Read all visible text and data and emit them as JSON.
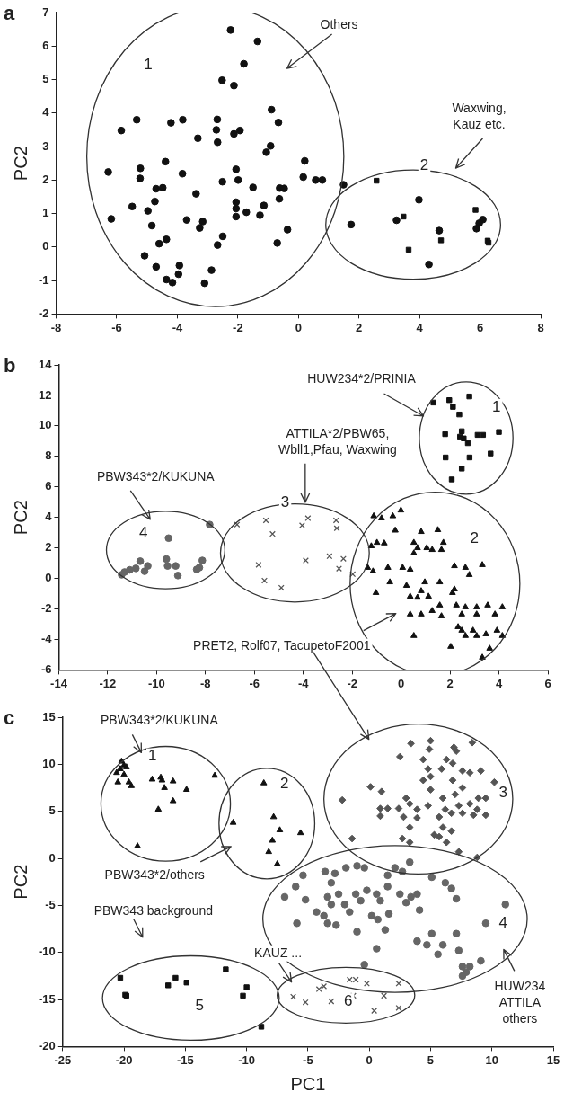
{
  "chart_data": [
    {
      "type": "scatter",
      "title": "a",
      "ylabel": "PC2",
      "xlim": [
        -8,
        8
      ],
      "ylim": [
        -2,
        7
      ],
      "xticks": [
        -8,
        -6,
        -4,
        -2,
        0,
        2,
        4,
        6,
        8
      ],
      "yticks": [
        -2,
        -1,
        0,
        1,
        2,
        3,
        4,
        5,
        6,
        7
      ],
      "series": [
        {
          "color": "#111111",
          "marker": "circle",
          "x": [
            -2.24,
            -1.35,
            -1.8,
            -2.52,
            -2.13,
            -0.89,
            -0.66,
            -5.34,
            -5.85,
            -4.21,
            -3.82,
            -2.68,
            -2.71,
            -3.32,
            -2.67,
            -2.13,
            -1.93,
            -0.92,
            -1.06,
            -6.28,
            -5.22,
            -5.23,
            -4.39,
            -3.83,
            -2.06,
            -1.99,
            -2.51,
            -4.7,
            -4.48,
            -3.38,
            -1.5,
            -0.62,
            -0.47,
            -0.63,
            0.21,
            0.16,
            0.57,
            0.79,
            -5.49,
            -4.74,
            -4.97,
            -2.06,
            -2.06,
            -2.06,
            -1.72,
            -1.14,
            -1.27,
            -6.18,
            -4.84,
            -3.69,
            -3.16,
            -3.26,
            -0.36,
            -0.7,
            -4.6,
            -4.36,
            -2.5,
            -2.67,
            -5.08,
            -4.7,
            -3.93,
            -3.96,
            -2.87,
            -4.36,
            -4.16,
            -3.1
          ],
          "values": [
            6.48,
            6.14,
            5.47,
            4.98,
            4.82,
            4.1,
            3.72,
            3.8,
            3.48,
            3.71,
            3.8,
            3.81,
            3.5,
            3.25,
            3.13,
            3.38,
            3.48,
            3.02,
            2.83,
            2.24,
            2.35,
            2.05,
            2.55,
            2.19,
            2.32,
            2.0,
            1.95,
            1.74,
            1.77,
            1.59,
            1.78,
            1.76,
            1.75,
            1.44,
            2.57,
            2.09,
            2.0,
            2.0,
            1.21,
            1.36,
            1.08,
            1.34,
            1.15,
            0.91,
            1.04,
            1.24,
            0.95,
            0.84,
            0.64,
            0.81,
            0.76,
            0.57,
            0.52,
            0.12,
            0.1,
            0.23,
            0.32,
            0.06,
            -0.26,
            -0.59,
            -0.55,
            -0.81,
            -0.69,
            -0.97,
            -1.06,
            -1.08
          ]
        },
        {
          "color": "#111111",
          "marker": "circle",
          "x": [
            1.49,
            1.74,
            3.24,
            3.98,
            4.31,
            4.65,
            6.09,
            5.97,
            5.88
          ],
          "values": [
            1.86,
            0.67,
            0.8,
            1.41,
            -0.52,
            0.49,
            0.82,
            0.71,
            0.55
          ]
        },
        {
          "color": "#111111",
          "marker": "square",
          "x": [
            2.58,
            3.47,
            3.64,
            4.71,
            5.85,
            6.25,
            6.28
          ],
          "values": [
            1.98,
            0.91,
            -0.08,
            0.2,
            1.11,
            0.19,
            0.13
          ]
        }
      ],
      "annotations": [
        "Others",
        "Waxwing,\nKauz etc.",
        "1",
        "2"
      ]
    },
    {
      "type": "scatter",
      "title": "b",
      "ylabel": "PC2",
      "xlim": [
        -14,
        6
      ],
      "ylim": [
        -6,
        14
      ],
      "xticks": [
        -14,
        -12,
        -10,
        -8,
        -6,
        -4,
        -2,
        0,
        2,
        4,
        6
      ],
      "yticks": [
        -6,
        -4,
        -2,
        0,
        2,
        4,
        6,
        8,
        10,
        12,
        14
      ],
      "series": [
        {
          "color": "#111111",
          "marker": "triangle",
          "x": [
            -1.12,
            -0.8,
            -0.34,
            -0.01,
            -0.24,
            -1.22,
            -0.99,
            -0.69,
            -1.37,
            -1.15,
            -0.54,
            0.06,
            0.37,
            0.52,
            0.82,
            0.52,
            0.67,
            1.05,
            1.27,
            1.5,
            1.73,
            1.65,
            2.18,
            2.63,
            2.79,
            3.32,
            -0.46,
            0.22,
            0.97,
            1.58,
            0.82,
            2.18,
            -1.03,
            0.37,
            0.67,
            1.12,
            2.1,
            1.58,
            2.26,
            2.63,
            3.09,
            3.54,
            4.14,
            0.37,
            0.82,
            1.27,
            1.65,
            2.48,
            3.09,
            3.84,
            2.33,
            2.48,
            2.94,
            3.09,
            3.47,
            3.92,
            4.14,
            0.52,
            2.03,
            3.62,
            3.32,
            2.63
          ],
          "values": [
            4.09,
            3.95,
            4.09,
            4.47,
            3.15,
            2.12,
            2.35,
            2.31,
            0.71,
            0.47,
            0.71,
            0.71,
            0.59,
            2.35,
            3.06,
            1.65,
            2.0,
            2.0,
            1.88,
            3.18,
            2.35,
            1.88,
            0.82,
            0.71,
            0.24,
            0.89,
            -0.24,
            -0.47,
            -0.24,
            -0.24,
            -0.82,
            -0.71,
            -0.94,
            -1.18,
            -1.25,
            -1.18,
            -0.94,
            -1.76,
            -1.76,
            -1.88,
            -1.88,
            -1.76,
            -1.88,
            -2.35,
            -2.35,
            -2.12,
            -2.47,
            -2.35,
            -2.35,
            -2.35,
            -3.18,
            -3.41,
            -3.41,
            -3.76,
            -3.65,
            -3.41,
            -3.76,
            -3.76,
            -4.47,
            -4.59,
            -5.18,
            -3.76
          ]
        },
        {
          "color": "#111111",
          "marker": "square",
          "x": [
            1.32,
            1.97,
            2.12,
            2.38,
            2.79,
            1.8,
            2.48,
            2.41,
            2.56,
            2.73,
            3.13,
            3.35,
            4.0,
            3.66,
            1.82,
            2.8,
            2.48,
            2.07
          ],
          "values": [
            11.53,
            11.69,
            11.25,
            10.75,
            11.93,
            9.46,
            9.65,
            9.29,
            9.18,
            8.87,
            9.41,
            9.41,
            9.6,
            8.19,
            7.93,
            7.93,
            7.2,
            6.49
          ]
        },
        {
          "color": "#666666",
          "marker": "circle",
          "x": [
            -11.43,
            -11.31,
            -11.1,
            -10.85,
            -10.67,
            -10.49,
            -10.36,
            -9.51,
            -9.6,
            -9.55,
            -9.22,
            -9.13,
            -8.36,
            -8.13,
            -7.83,
            -8.25
          ],
          "values": [
            0.24,
            0.42,
            0.56,
            0.66,
            1.13,
            0.47,
            0.82,
            2.64,
            1.27,
            0.82,
            0.82,
            0.19,
            0.59,
            1.18,
            3.53,
            0.71
          ]
        },
        {
          "color": "#555555",
          "marker": "cross",
          "x": [
            -6.71,
            -5.53,
            -5.26,
            -4.05,
            -3.81,
            -2.66,
            -2.63,
            -5.83,
            -3.9,
            -2.93,
            -2.36,
            -2.54,
            -1.98,
            -5.59,
            -4.9
          ],
          "values": [
            3.53,
            3.81,
            2.92,
            3.48,
            3.95,
            3.81,
            3.29,
            0.89,
            1.18,
            1.46,
            1.29,
            0.64,
            0.28,
            -0.14,
            -0.61
          ]
        }
      ],
      "annotations": [
        "HUW234*2/PRINIA",
        "ATTILA*2/PBW65,\nWbll1,Pfau, Waxwing",
        "PBW343*2/KUKUNA",
        "PRET2, Rolf07, TacupetoF2001",
        "1",
        "2",
        "3",
        "4"
      ]
    },
    {
      "type": "scatter",
      "title": "c",
      "xlabel": "PC1",
      "ylabel": "PC2",
      "xlim": [
        -25,
        15
      ],
      "ylim": [
        -20,
        15
      ],
      "xticks": [
        -25,
        -20,
        -15,
        -10,
        -5,
        0,
        5,
        10,
        15
      ],
      "yticks": [
        -20,
        -15,
        -10,
        -5,
        0,
        5,
        10,
        15
      ],
      "series": [
        {
          "color": "#666666",
          "marker": "circle",
          "x": [
            -6.9,
            -6.0,
            -5.4,
            -5.2,
            -5.9,
            -3.6,
            -3.1,
            -2.8,
            -1.9,
            -1.0,
            -0.4,
            -2.5,
            -3.4,
            -3.1,
            -4.3,
            -3.7,
            -3.4,
            -2.7,
            -1.6,
            -2.0,
            -1.1,
            -0.7,
            -1.0,
            -0.2,
            0.6,
            0.9,
            0.2,
            1.3,
            0.6,
            1.6,
            1.5,
            2.1,
            2.7,
            3.3,
            2.5,
            3.4,
            3.0,
            3.9,
            4.1,
            5.1,
            6.2,
            6.7,
            7.1,
            5.1,
            3.9,
            4.7,
            5.6,
            6.0,
            7.1,
            7.3,
            7.6,
            7.9,
            8.2,
            7.6,
            9.1,
            9.5,
            11.1,
            -0.4,
            1.5,
            0.7
          ],
          "values": [
            -4.1,
            -3.0,
            -1.8,
            -4.4,
            -6.9,
            -1.4,
            -2.6,
            -1.6,
            -1.0,
            -0.8,
            -1.0,
            -3.8,
            -4.1,
            -4.9,
            -5.7,
            -6.1,
            -6.9,
            -7.1,
            -5.7,
            -4.9,
            -3.8,
            -4.5,
            -7.8,
            -3.4,
            -3.8,
            -4.5,
            -6.1,
            -7.6,
            -9.6,
            -5.9,
            -1.8,
            -1.0,
            -1.4,
            -0.4,
            -3.8,
            -4.1,
            -4.7,
            -3.8,
            -5.5,
            -2.0,
            -2.6,
            -3.2,
            -4.3,
            -8.0,
            -8.8,
            -9.2,
            -10.2,
            -9.2,
            -8.0,
            -9.8,
            -11.5,
            -12.1,
            -11.5,
            -12.5,
            -10.9,
            -6.9,
            -4.9,
            -11.3,
            -3.0,
            -6.5
          ]
        },
        {
          "color": "#555555",
          "marker": "diamond",
          "x": [
            3.4,
            5.0,
            4.9,
            4.4,
            2.5,
            6.9,
            7.1,
            8.4,
            4.8,
            5.9,
            6.3,
            6.8,
            7.6,
            8.2,
            9.1,
            4.4,
            5.0,
            6.8,
            7.6,
            10.2,
            0.1,
            1.0,
            -2.2,
            3.0,
            5.0,
            6.0,
            7.0,
            8.9,
            9.5,
            0.9,
            1.5,
            2.4,
            3.3,
            3.9,
            4.8,
            6.2,
            7.3,
            8.2,
            8.8,
            0.9,
            2.8,
            3.9,
            5.7,
            6.7,
            7.6,
            8.5,
            9.5,
            3.3,
            5.3,
            6.0,
            5.7,
            6.7,
            2.7,
            3.3,
            6.3,
            7.3,
            -1.4,
            8.8
          ],
          "values": [
            12.2,
            12.5,
            11.6,
            10.5,
            10.8,
            11.8,
            11.4,
            12.3,
            9.5,
            9.5,
            10.5,
            10.1,
            9.3,
            9.1,
            9.3,
            8.3,
            8.7,
            8.3,
            7.5,
            8.1,
            7.6,
            7.1,
            6.2,
            6.4,
            7.3,
            6.4,
            6.8,
            6.4,
            6.4,
            5.3,
            5.3,
            5.3,
            5.8,
            5.2,
            5.6,
            5.2,
            5.6,
            5.8,
            5.2,
            4.5,
            4.4,
            4.3,
            4.4,
            4.8,
            4.8,
            4.6,
            4.6,
            3.3,
            2.5,
            3.3,
            2.3,
            2.9,
            2.1,
            1.7,
            1.7,
            0.7,
            2.1,
            0.1
          ]
        },
        {
          "color": "#111111",
          "marker": "triangle",
          "x": [
            -20.2,
            -20.3,
            -20.0,
            -19.8,
            -20.5,
            -20.0,
            -19.6,
            -19.4,
            -17.7,
            -17.0,
            -16.9,
            -16.7,
            -16.0,
            -14.9,
            -16.0,
            -17.2,
            -12.6,
            -18.9,
            -20.6
          ],
          "values": [
            10.3,
            9.5,
            9.9,
            9.7,
            8.1,
            8.9,
            8.1,
            7.7,
            8.4,
            8.6,
            8.3,
            7.5,
            8.2,
            7.3,
            6.1,
            5.2,
            8.8,
            1.3,
            9.1
          ]
        },
        {
          "color": "#555555",
          "marker": "cross",
          "x": [
            -6.2,
            -5.2,
            -4.1,
            -3.7,
            -3.1,
            -1.6,
            -1.1,
            -1.3,
            -0.2,
            0.4,
            1.2,
            2.4,
            2.4
          ],
          "values": [
            -14.7,
            -15.3,
            -13.9,
            -13.6,
            -15.2,
            -12.9,
            -12.9,
            -14.6,
            -13.3,
            -16.2,
            -14.6,
            -13.3,
            -15.9
          ]
        },
        {
          "color": "#111111",
          "marker": "square",
          "x": [
            -20.3,
            -19.9,
            -19.8,
            -16.4,
            -15.8,
            -14.9,
            -11.7,
            -10.0,
            -10.3,
            -8.8
          ],
          "values": [
            -12.7,
            -14.5,
            -14.6,
            -13.5,
            -12.7,
            -13.2,
            -11.8,
            -13.7,
            -14.6,
            -17.9
          ]
        },
        {
          "color": "#111111",
          "marker": "triangle",
          "x": [
            -8.6,
            -7.8,
            -7.3,
            -7.9,
            -8.2,
            -7.5,
            -11.1,
            -5.6
          ],
          "values": [
            8.0,
            4.4,
            3.0,
            1.9,
            0.7,
            -0.6,
            3.8,
            2.7
          ]
        }
      ],
      "annotations": [
        "PBW343*2/KUKUNA",
        "PBW343*2/others",
        "PBW343 background",
        "KAUZ ...",
        "HUW234\nATTILA\nothers",
        "1",
        "2",
        "3",
        "4",
        "5",
        "6"
      ]
    }
  ]
}
